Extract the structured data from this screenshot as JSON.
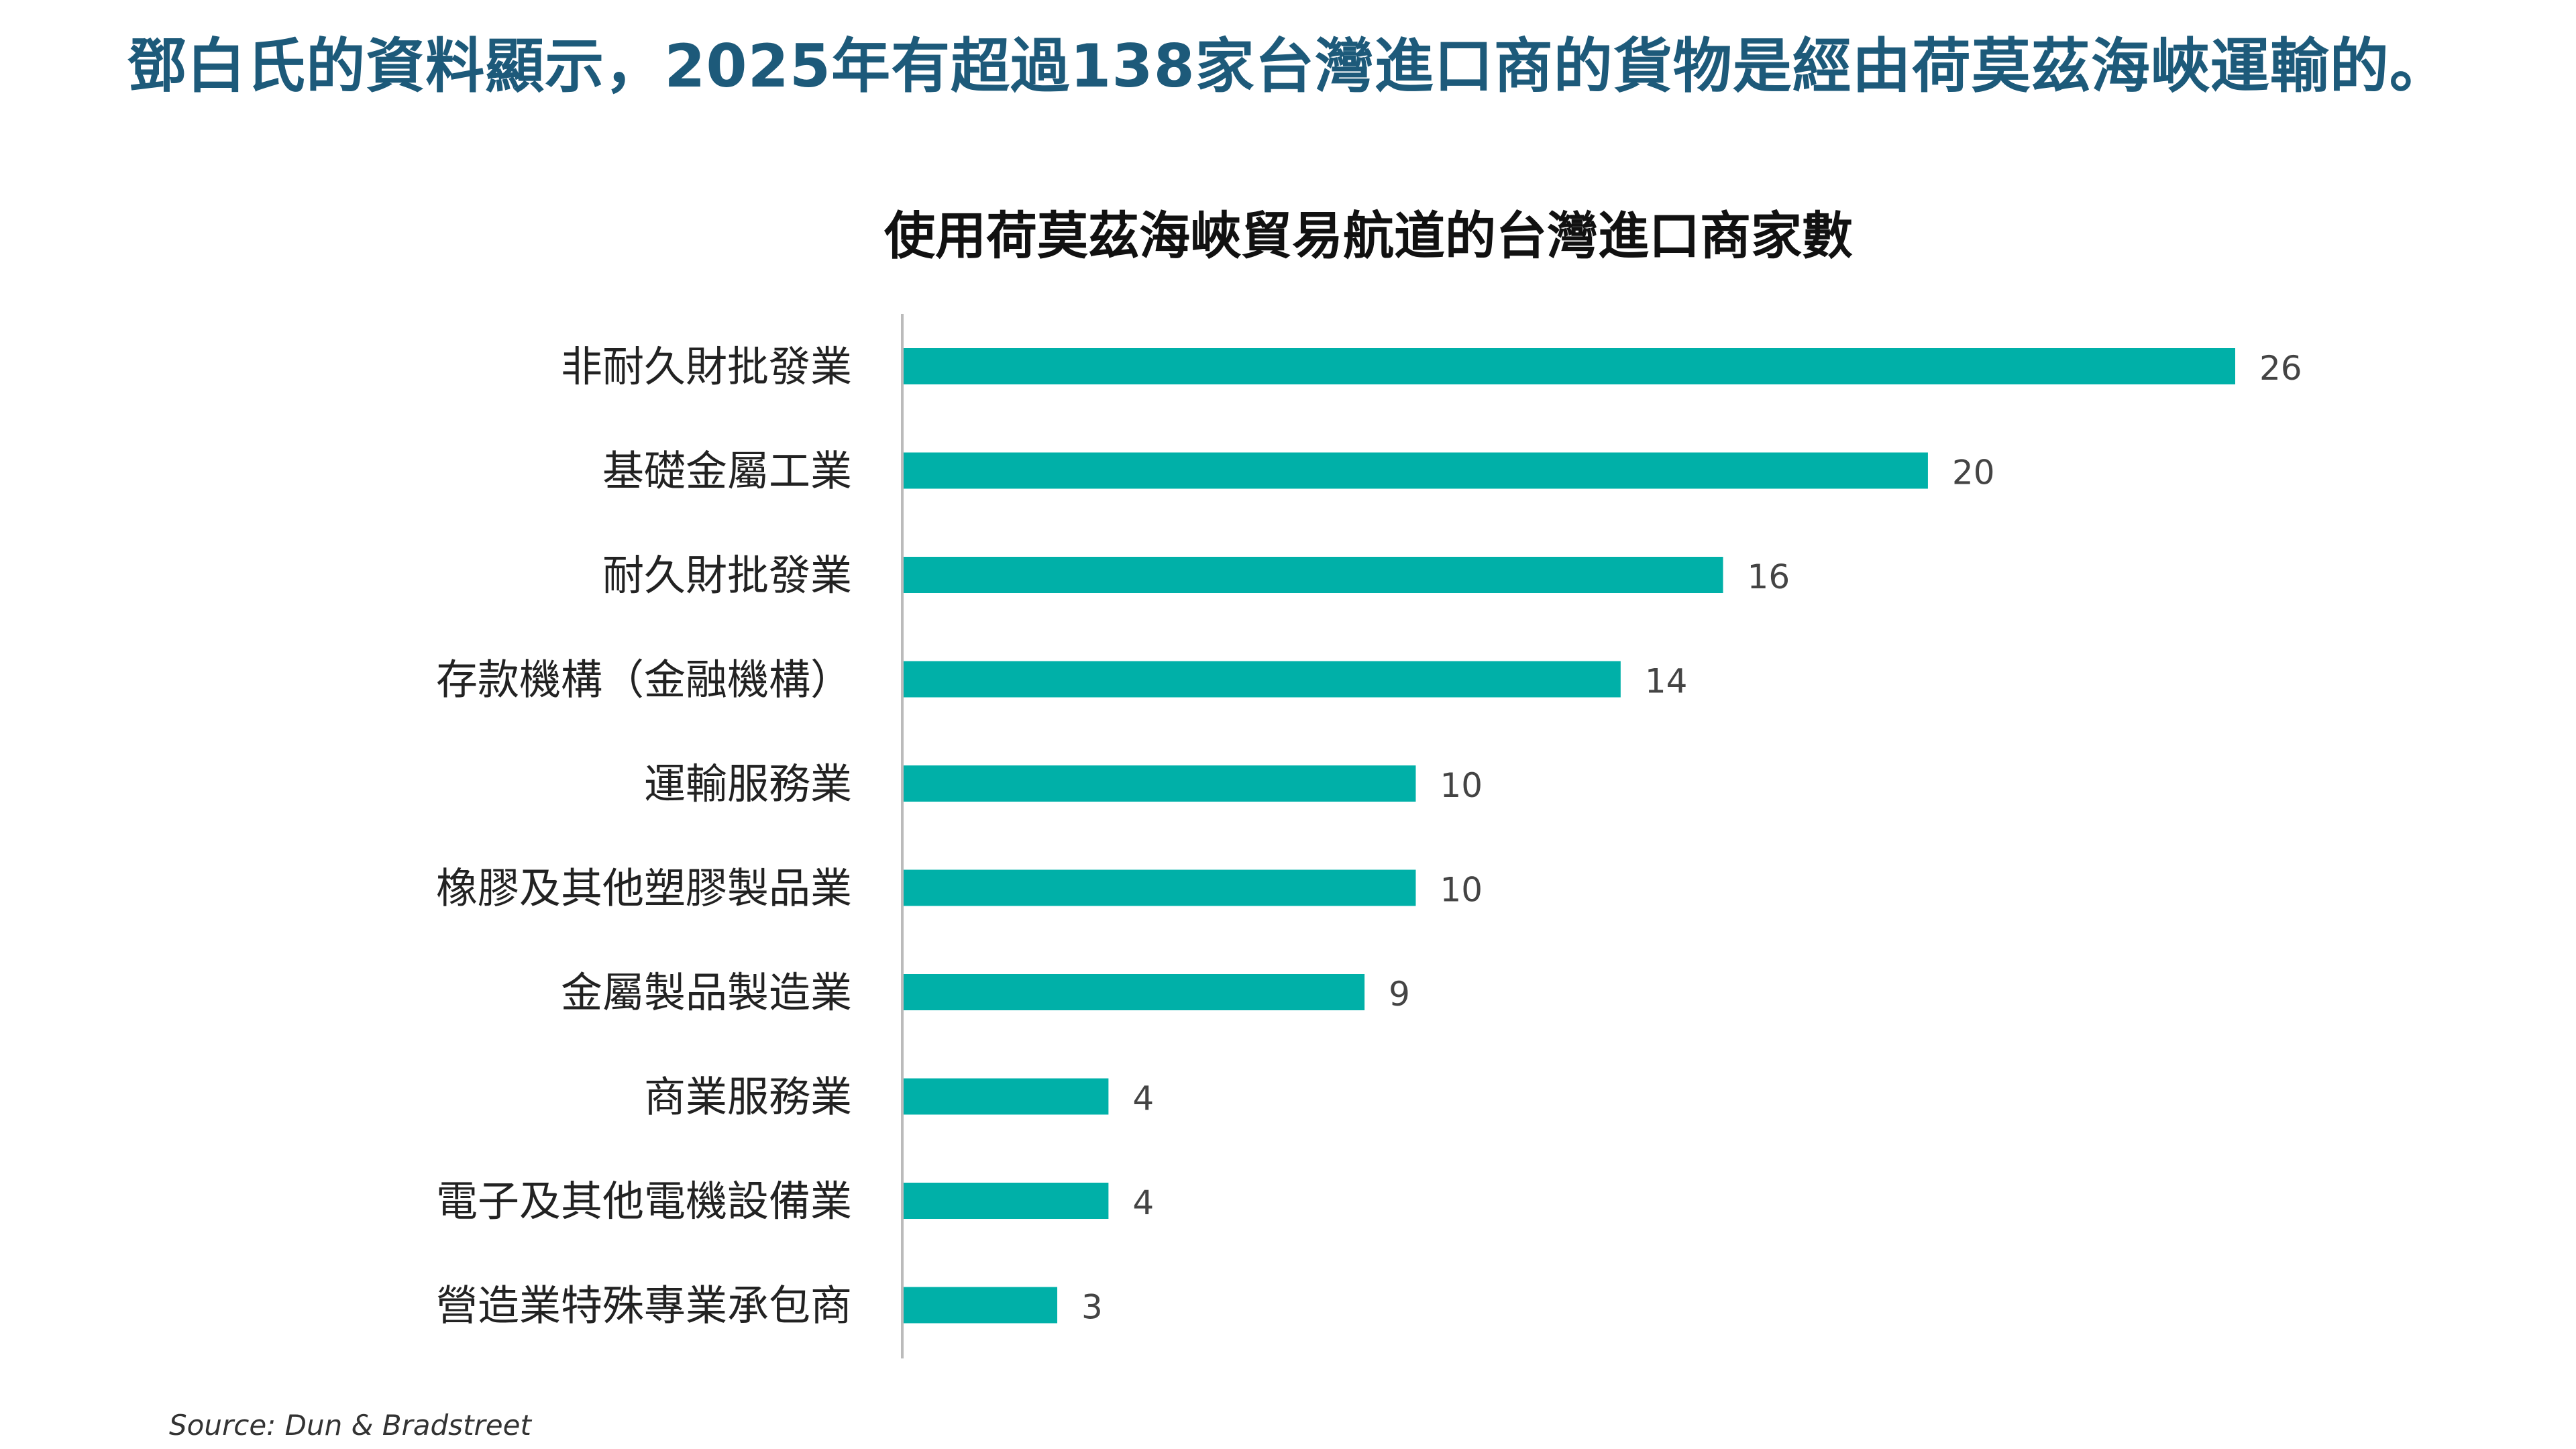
{
  "headline": "鄧白氏的資料顯示，2025年有超過138家台灣進口商的貨物是經由荷莫茲海峽運輸的。",
  "source": "Source: Dun & Bradstreet",
  "colors": {
    "bar": "#00b0a8",
    "headline": "#1d5a7a",
    "axis": "#bbbbbb"
  },
  "chart_data": {
    "type": "bar",
    "orientation": "horizontal",
    "title": "使用荷莫茲海峽貿易航道的台灣進口商家數",
    "xlabel": "",
    "ylabel": "",
    "xlim": [
      0,
      26
    ],
    "grid": false,
    "legend": "none",
    "data_labels": true,
    "categories": [
      "非耐久財批發業",
      "基礎金屬工業",
      "耐久財批發業",
      "存款機構（金融機構）",
      "運輸服務業",
      "橡膠及其他塑膠製品業",
      "金屬製品製造業",
      "商業服務業",
      "電子及其他電機設備業",
      "營造業特殊專業承包商"
    ],
    "values": [
      26,
      20,
      16,
      14,
      10,
      10,
      9,
      4,
      4,
      3
    ]
  }
}
